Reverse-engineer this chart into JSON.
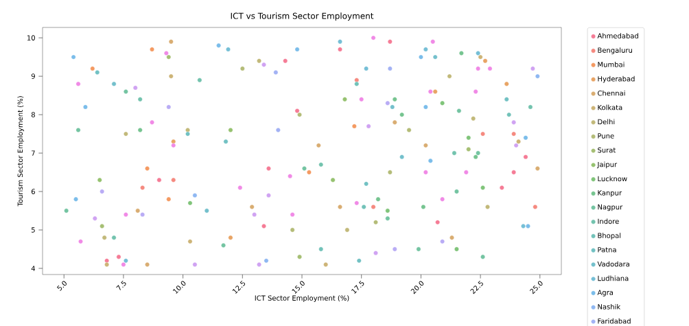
{
  "chart_data": {
    "type": "scatter",
    "title": "ICT vs Tourism Sector Employment",
    "xlabel": "ICT Sector Employment (%)",
    "ylabel": "Tourism Sector Employment (%)",
    "xlim": [
      4.1,
      25.9
    ],
    "ylim": [
      3.84,
      10.27
    ],
    "xticks": [
      {
        "value": 5,
        "label": "5.0"
      },
      {
        "value": 7.5,
        "label": "7.5"
      },
      {
        "value": 10,
        "label": "10.0"
      },
      {
        "value": 12.5,
        "label": "12.5"
      },
      {
        "value": 15,
        "label": "15.0"
      },
      {
        "value": 17.5,
        "label": "17.5"
      },
      {
        "value": 20,
        "label": "20.0"
      },
      {
        "value": 22.5,
        "label": "22.5"
      },
      {
        "value": 25,
        "label": "25.0"
      }
    ],
    "yticks": [
      4,
      5,
      6,
      7,
      8,
      9,
      10
    ],
    "marker": "circle",
    "legend": "right",
    "series": [
      {
        "name": "Ahmedabad",
        "color": "#f57c96",
        "x": [
          14.3,
          16.6,
          18.7,
          14.8,
          23.9,
          23.4,
          20.7,
          13.6,
          13.4,
          9.0,
          7.3,
          6.8,
          24.4
        ],
        "values": [
          9.4,
          9.7,
          9.9,
          8.1,
          6.5,
          6.1,
          5.2,
          6.6,
          5.1,
          6.3,
          4.3,
          4.2,
          6.9
        ]
      },
      {
        "name": "Bengaluru",
        "color": "#f58a80",
        "x": [
          17.3,
          22.6,
          23.9,
          24.8,
          18.0,
          9.6,
          8.3
        ],
        "values": [
          8.9,
          7.5,
          7.5,
          5.6,
          5.6,
          6.3,
          6.1
        ]
      },
      {
        "name": "Mumbai",
        "color": "#f49a62",
        "x": [
          6.2,
          8.7,
          17.2,
          15.3,
          8.5,
          9.4
        ],
        "values": [
          9.2,
          9.7,
          7.7,
          6.5,
          6.6,
          5.8
        ]
      },
      {
        "name": "Hyderabad",
        "color": "#e8a465",
        "x": [
          9.6,
          22.7,
          23.6,
          20.6,
          12.0
        ],
        "values": [
          7.3,
          9.4,
          8.8,
          8.6,
          4.8
        ]
      },
      {
        "name": "Chennai",
        "color": "#d9ad72",
        "x": [
          9.5,
          15.7,
          18.9,
          20.2,
          24.9,
          21.3,
          12.9,
          16.6,
          8.1,
          8.5
        ],
        "values": [
          9.9,
          7.2,
          7.8,
          7.2,
          6.6,
          4.8,
          5.6,
          5.6,
          5.5,
          4.1
        ]
      },
      {
        "name": "Kolkata",
        "color": "#cdb477",
        "x": [
          9.5,
          22.5,
          24.1,
          16.0,
          10.3,
          6.8
        ],
        "values": [
          9.0,
          9.5,
          7.3,
          4.1,
          4.7,
          4.1
        ]
      },
      {
        "name": "Delhi",
        "color": "#c2b97a",
        "x": [
          7.6,
          10.2,
          13.2,
          21.2,
          22.2,
          22.8,
          16.9,
          6.7
        ],
        "values": [
          7.5,
          7.6,
          9.4,
          9.0,
          7.9,
          5.6,
          5.0,
          4.8
        ]
      },
      {
        "name": "Pune",
        "color": "#b4bc78",
        "x": [
          12.5,
          14.9,
          19.5,
          18.7,
          14.6,
          18.1
        ],
        "values": [
          9.2,
          8.0,
          7.6,
          6.5,
          5.0,
          5.2
        ]
      },
      {
        "name": "Surat",
        "color": "#a6bf74",
        "x": [
          9.4,
          22.0,
          14.9,
          6.6
        ],
        "values": [
          9.5,
          7.1,
          4.3,
          5.1
        ]
      },
      {
        "name": "Jaipur",
        "color": "#96c270",
        "x": [
          12.0,
          16.3,
          6.5,
          16.8
        ],
        "values": [
          7.6,
          6.3,
          6.3,
          8.4
        ]
      },
      {
        "name": "Lucknow",
        "color": "#80c47a",
        "x": [
          20.9,
          22.0,
          22.6,
          18.6,
          21.5,
          10.3
        ],
        "values": [
          8.3,
          7.4,
          6.1,
          5.5,
          4.5,
          5.7
        ]
      },
      {
        "name": "Kanpur",
        "color": "#76c490",
        "x": [
          21.7,
          18.9,
          19.2,
          22.3,
          20.1,
          18.2,
          8.2
        ],
        "values": [
          9.6,
          8.4,
          8.0,
          6.9,
          5.6,
          5.8,
          7.6
        ]
      },
      {
        "name": "Nagpur",
        "color": "#74c4a2",
        "x": [
          7.6,
          5.6,
          21.6,
          22.4,
          21.5,
          18.6,
          19.9,
          22.6,
          15.1,
          11.7,
          5.1
        ],
        "values": [
          8.6,
          7.6,
          8.1,
          7.0,
          6.0,
          5.3,
          4.5,
          4.3,
          6.6,
          4.6,
          5.5
        ]
      },
      {
        "name": "Indore",
        "color": "#73c3ae",
        "x": [
          8.2,
          10.7,
          24.6,
          21.4,
          15.8,
          7.1
        ],
        "values": [
          8.4,
          8.9,
          8.2,
          7.0,
          6.7,
          4.8
        ]
      },
      {
        "name": "Bhopal",
        "color": "#72c2b9",
        "x": [
          17.3,
          23.7,
          15.8,
          17.6
        ],
        "values": [
          8.8,
          8.0,
          4.5,
          5.6
        ]
      },
      {
        "name": "Patna",
        "color": "#72c1c3",
        "x": [
          6.4,
          10.2,
          11.8,
          23.6,
          17.7,
          17.4
        ],
        "values": [
          9.1,
          7.5,
          7.3,
          8.4,
          6.2,
          4.2
        ]
      },
      {
        "name": "Vadodara",
        "color": "#74c0cc",
        "x": [
          7.1,
          20.6,
          18.8,
          19.2,
          11.0
        ],
        "values": [
          8.8,
          9.5,
          8.2,
          6.9,
          5.5
        ]
      },
      {
        "name": "Ludhiana",
        "color": "#76bfd6",
        "x": [
          11.9,
          16.6,
          17.7,
          20.2,
          22.4,
          24.3,
          7.6
        ],
        "values": [
          9.7,
          9.9,
          9.2,
          9.7,
          9.6,
          5.1,
          4.2
        ]
      },
      {
        "name": "Agra",
        "color": "#7bbdea",
        "x": [
          5.4,
          5.9,
          11.5,
          14.8,
          20.0,
          20.2,
          24.4,
          20.4,
          5.5,
          24.5
        ],
        "values": [
          9.5,
          8.2,
          9.8,
          9.7,
          9.5,
          8.2,
          7.4,
          6.8,
          5.8,
          5.1
        ]
      },
      {
        "name": "Nashik",
        "color": "#8fb8f2",
        "x": [
          24.9,
          13.5,
          10.5
        ],
        "values": [
          9.0,
          4.2,
          5.9
        ]
      },
      {
        "name": "Faridabad",
        "color": "#a3b2f4",
        "x": [
          13.9,
          18.7,
          14.0
        ],
        "values": [
          9.1,
          9.2,
          7.6
        ]
      },
      {
        "color": "#b9acf5",
        "x": [
          9.4,
          18.6,
          6.6,
          8.3,
          18.9,
          20.9
        ],
        "values": [
          8.2,
          8.3,
          6.0,
          5.4,
          4.5,
          4.7
        ]
      },
      {
        "color": "#d0a3f2",
        "x": [
          8.0,
          13.4,
          17.8,
          24.7,
          23.9,
          24.0,
          13.6,
          13.0,
          13.2,
          18.1,
          10.5,
          6.3
        ],
        "values": [
          8.7,
          9.3,
          7.7,
          9.2,
          7.8,
          7.2,
          5.9,
          5.4,
          4.1,
          4.4,
          4.1,
          5.3
        ]
      },
      {
        "color": "#f08ae6",
        "x": [
          5.6,
          9.3,
          8.7,
          9.6,
          18.0,
          20.5,
          17.5,
          22.4,
          22.9,
          20.4,
          22.3,
          20.2,
          21.9,
          20.9,
          14.5,
          12.4,
          14.6,
          17.3,
          5.7,
          7.6,
          7.5
        ],
        "values": [
          8.8,
          9.6,
          7.8,
          7.2,
          10.0,
          9.9,
          8.4,
          9.2,
          9.2,
          8.6,
          8.6,
          6.5,
          6.5,
          5.8,
          6.4,
          6.1,
          5.4,
          5.7,
          4.7,
          5.4,
          4.1
        ]
      }
    ]
  }
}
